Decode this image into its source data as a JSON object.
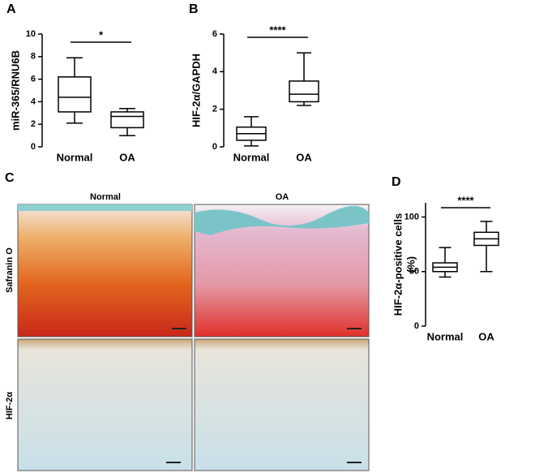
{
  "chart_data": [
    {
      "type": "box",
      "panel": "A",
      "ylabel": "miR-365/RNU6B",
      "categories": [
        "Normal",
        "OA"
      ],
      "stats": [
        {
          "min": 2.1,
          "q1": 3.1,
          "median": 4.4,
          "q3": 6.2,
          "max": 7.9
        },
        {
          "min": 1.0,
          "q1": 1.7,
          "median": 2.7,
          "q3": 3.1,
          "max": 3.4
        }
      ],
      "ylim": [
        0,
        10
      ],
      "yticks": [
        0,
        2,
        4,
        6,
        8,
        10
      ],
      "significance": "*",
      "color": "#000000"
    },
    {
      "type": "box",
      "panel": "B",
      "ylabel": "HIF-2α/GAPDH",
      "categories": [
        "Normal",
        "OA"
      ],
      "stats": [
        {
          "min": 0.05,
          "q1": 0.35,
          "median": 0.7,
          "q3": 1.05,
          "max": 1.6
        },
        {
          "min": 2.2,
          "q1": 2.4,
          "median": 2.8,
          "q3": 3.5,
          "max": 5.0
        }
      ],
      "ylim": [
        0,
        6
      ],
      "yticks": [
        0,
        2,
        4,
        6
      ],
      "significance": "****",
      "color": "#000000"
    },
    {
      "type": "box",
      "panel": "D",
      "ylabel": "HIF-2α-positive cells",
      "ylabel2": "(%)",
      "categories": [
        "Normal",
        "OA"
      ],
      "stats": [
        {
          "min": 45,
          "q1": 50,
          "median": 54,
          "q3": 58,
          "max": 72
        },
        {
          "min": 50,
          "q1": 74,
          "median": 80,
          "q3": 86,
          "max": 96
        }
      ],
      "ylim": [
        0,
        113
      ],
      "yticks": [
        0,
        50,
        100
      ],
      "significance": "****",
      "color": "#000000"
    }
  ],
  "panel_c": {
    "letter": "C",
    "columns": [
      "Normal",
      "OA"
    ],
    "rows": [
      "Safranin O",
      "HIF-2α"
    ]
  }
}
